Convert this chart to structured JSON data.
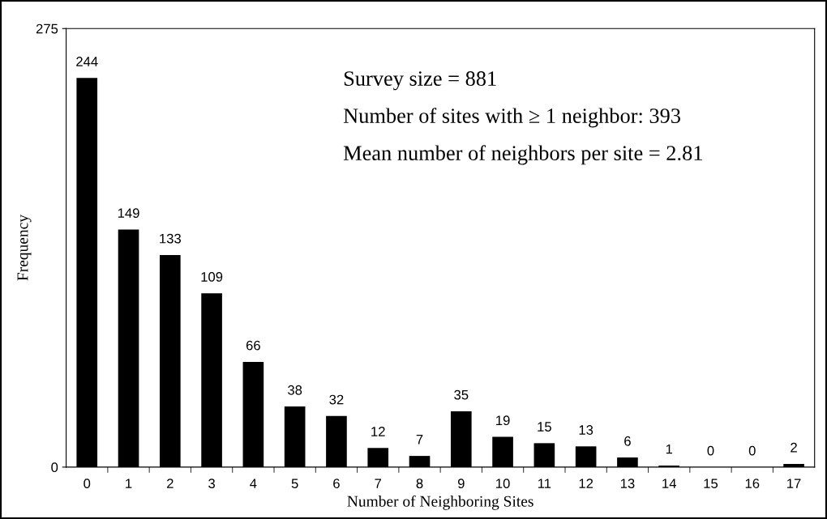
{
  "chart_data": {
    "type": "bar",
    "xlabel": "Number of Neighboring Sites",
    "ylabel": "Frequency",
    "categories": [
      "0",
      "1",
      "2",
      "3",
      "4",
      "5",
      "6",
      "7",
      "8",
      "9",
      "10",
      "11",
      "12",
      "13",
      "14",
      "15",
      "16",
      "17"
    ],
    "values": [
      244,
      149,
      133,
      109,
      66,
      38,
      32,
      12,
      7,
      35,
      19,
      15,
      13,
      6,
      1,
      0,
      0,
      2
    ],
    "color": "#000000",
    "ylim": [
      0,
      275
    ],
    "yticks": [
      0,
      275
    ],
    "grid": false,
    "data_labels": true,
    "annotations": [
      "Survey size = 881",
      "Number of sites with ≥ 1 neighbor: 393",
      "Mean number of neighbors per site = 2.81"
    ]
  }
}
